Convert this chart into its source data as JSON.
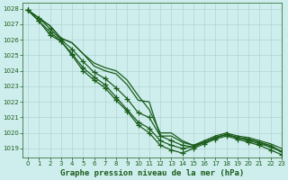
{
  "title": "Graphe pression niveau de la mer (hPa)",
  "background_color": "#ceeeed",
  "grid_color": "#b0d4d0",
  "line_color": "#1a5c1a",
  "xlim": [
    -0.5,
    23
  ],
  "ylim": [
    1018.4,
    1028.4
  ],
  "yticks": [
    1019,
    1020,
    1021,
    1022,
    1023,
    1024,
    1025,
    1026,
    1027,
    1028
  ],
  "xticks": [
    0,
    1,
    2,
    3,
    4,
    5,
    6,
    7,
    8,
    9,
    10,
    11,
    12,
    13,
    14,
    15,
    16,
    17,
    18,
    19,
    20,
    21,
    22,
    23
  ],
  "series": [
    {
      "x": [
        0,
        1,
        2,
        3,
        4,
        5,
        6,
        7,
        8,
        9,
        10,
        11,
        12,
        13,
        14,
        15,
        16,
        17,
        18,
        19,
        20,
        21,
        22,
        23
      ],
      "y": [
        1027.9,
        1027.4,
        1026.9,
        1026.1,
        1025.8,
        1025.1,
        1024.3,
        1024.0,
        1023.8,
        1023.1,
        1022.1,
        1022.0,
        1019.8,
        1019.8,
        1019.4,
        1019.2,
        1019.4,
        1019.7,
        1019.9,
        1019.7,
        1019.6,
        1019.4,
        1019.2,
        1018.8
      ],
      "marker": false
    },
    {
      "x": [
        0,
        1,
        2,
        3,
        4,
        5,
        6,
        7,
        8,
        9,
        10,
        11,
        12,
        13,
        14,
        15,
        16,
        17,
        18,
        19,
        20,
        21,
        22,
        23
      ],
      "y": [
        1027.9,
        1027.4,
        1026.9,
        1026.1,
        1025.8,
        1025.1,
        1024.5,
        1024.2,
        1024.0,
        1023.4,
        1022.4,
        1021.5,
        1020.0,
        1020.0,
        1019.5,
        1019.2,
        1019.5,
        1019.8,
        1020.0,
        1019.8,
        1019.7,
        1019.5,
        1019.3,
        1019.0
      ],
      "marker": false
    },
    {
      "x": [
        0,
        1,
        2,
        3,
        4,
        5,
        6,
        7,
        8,
        9,
        10,
        11,
        12,
        13,
        14,
        15,
        16,
        17,
        18,
        19,
        20,
        21,
        22,
        23
      ],
      "y": [
        1027.9,
        1027.4,
        1026.7,
        1026.0,
        1025.4,
        1024.6,
        1023.9,
        1023.5,
        1022.9,
        1022.2,
        1021.3,
        1021.0,
        1019.8,
        1019.5,
        1019.2,
        1019.1,
        1019.4,
        1019.7,
        1019.9,
        1019.7,
        1019.6,
        1019.4,
        1019.1,
        1018.8
      ],
      "marker": true
    },
    {
      "x": [
        0,
        1,
        2,
        3,
        4,
        5,
        6,
        7,
        8,
        9,
        10,
        11,
        12,
        13,
        14,
        15,
        16,
        17,
        18,
        19,
        20,
        21,
        22,
        23
      ],
      "y": [
        1027.9,
        1027.2,
        1026.5,
        1025.9,
        1025.1,
        1024.2,
        1023.6,
        1023.1,
        1022.3,
        1021.5,
        1020.7,
        1020.3,
        1019.5,
        1019.2,
        1019.0,
        1019.1,
        1019.4,
        1019.7,
        1019.9,
        1019.7,
        1019.5,
        1019.3,
        1019.1,
        1018.8
      ],
      "marker": true
    },
    {
      "x": [
        0,
        1,
        2,
        3,
        4,
        5,
        6,
        7,
        8,
        9,
        10,
        11,
        12,
        13,
        14,
        15,
        16,
        17,
        18,
        19,
        20,
        21,
        22,
        23
      ],
      "y": [
        1027.9,
        1027.2,
        1026.3,
        1025.9,
        1025.0,
        1024.0,
        1023.4,
        1022.9,
        1022.1,
        1021.4,
        1020.5,
        1020.0,
        1019.2,
        1018.9,
        1018.7,
        1019.0,
        1019.3,
        1019.6,
        1019.8,
        1019.6,
        1019.4,
        1019.2,
        1018.9,
        1018.6
      ],
      "marker": true
    }
  ],
  "title_fontsize": 6.5,
  "tick_fontsize": 5,
  "linewidth": 0.9,
  "marker_style": "+",
  "marker_size": 4,
  "marker_edge_width": 0.9
}
